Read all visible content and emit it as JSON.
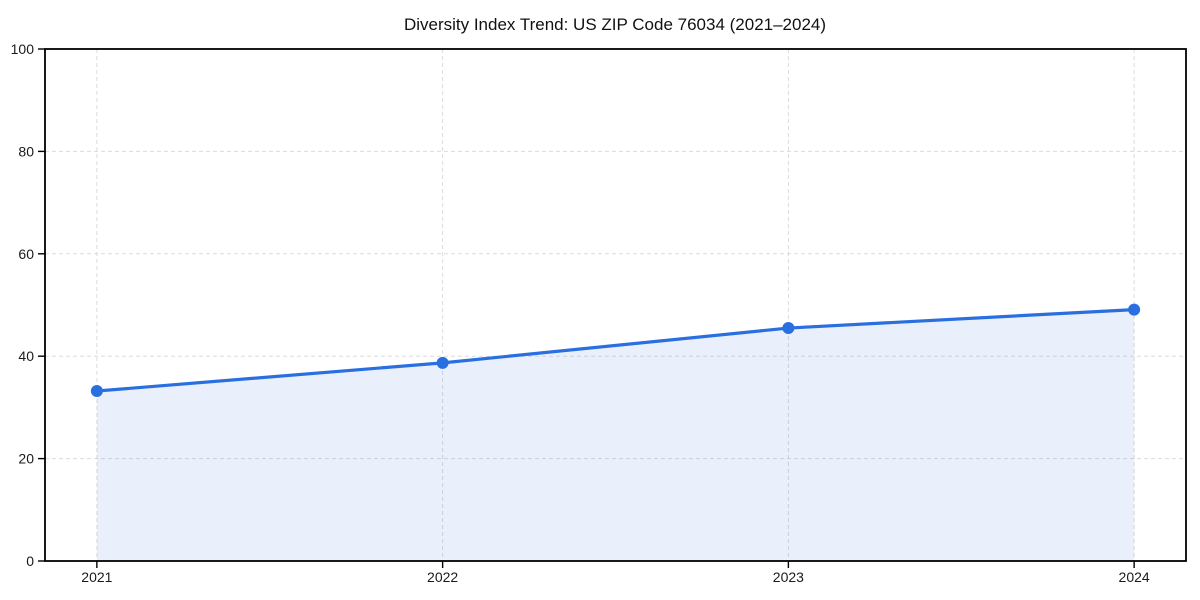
{
  "chart_data": {
    "type": "area",
    "title": "Diversity Index Trend: US ZIP Code 76034 (2021–2024)",
    "x": [
      2021,
      2022,
      2023,
      2024
    ],
    "series": [
      {
        "name": "Diversity Index",
        "values": [
          33.2,
          38.7,
          45.5,
          49.1
        ]
      }
    ],
    "xlabel": "",
    "ylabel": "",
    "ylim": [
      0,
      100
    ],
    "yticks": [
      0,
      20,
      40,
      60,
      80,
      100
    ],
    "xticks": [
      "2021",
      "2022",
      "2023",
      "2024"
    ],
    "grid": "dashed-both-axes",
    "legend": "none",
    "colors": {
      "line": "#2a6fe0",
      "marker": "#2a6fe0",
      "area_fill": "#2a6fe0",
      "area_fill_opacity": 0.1,
      "gridline": "#dcdcdc",
      "axis": "#000000",
      "tick_text": "#1a1a1a",
      "background": "#ffffff"
    }
  }
}
